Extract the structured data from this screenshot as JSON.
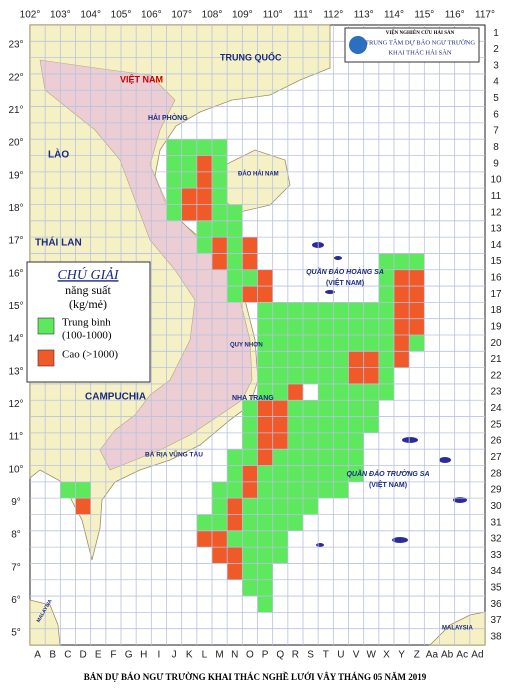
{
  "header": {
    "institute": "VIỆN NGHIÊN CỨU HẢI SẢN",
    "center": [
      "TRUNG TÂM DỰ BÁO NGƯ TRƯỜNG",
      "KHAI THÁC HẢI SẢN"
    ]
  },
  "longitudes": [
    "102°",
    "103°",
    "104°",
    "105°",
    "106°",
    "107°",
    "108°",
    "109°",
    "110°",
    "111°",
    "112°",
    "113°",
    "114°",
    "115°",
    "116°",
    "117°"
  ],
  "latitudes": [
    "23°",
    "22°",
    "21°",
    "20°",
    "19°",
    "18°",
    "17°",
    "16°",
    "15°",
    "14°",
    "13°",
    "12°",
    "11°",
    "10°",
    "9°",
    "8°",
    "7°",
    "6°",
    "5°"
  ],
  "columns": [
    "A",
    "B",
    "C",
    "D",
    "E",
    "F",
    "G",
    "H",
    "I",
    "J",
    "K",
    "L",
    "M",
    "N",
    "O",
    "P",
    "Q",
    "R",
    "S",
    "T",
    "U",
    "V",
    "W",
    "X",
    "Y",
    "Z",
    "Aa",
    "Ab",
    "Ac",
    "Ad"
  ],
  "rows": [
    "1",
    "2",
    "3",
    "4",
    "5",
    "6",
    "7",
    "8",
    "9",
    "10",
    "11",
    "12",
    "13",
    "14",
    "15",
    "16",
    "17",
    "18",
    "19",
    "20",
    "21",
    "22",
    "23",
    "24",
    "25",
    "26",
    "27",
    "28",
    "29",
    "30",
    "31",
    "32",
    "33",
    "34",
    "35",
    "36",
    "37",
    "38"
  ],
  "places": {
    "vietnam": "VIỆT NAM",
    "china": "TRUNG QUỐC",
    "laos": "LÀO",
    "thailand": "THÁI LAN",
    "cambodia": "CAMPUCHIA",
    "haiphong": "HẢI PHÒNG",
    "hainan": "ĐẢO HẢI NAM",
    "hoangsa": "QUẦN ĐẢO HOÀNG SA",
    "hoangsa_vn": "(VIỆT NAM)",
    "truongsa": "QUẦN ĐẢO TRƯỜNG SA",
    "truongsa_vn": "(VIỆT NAM)",
    "nhatrang": "NHA TRANG",
    "vungtau": "BÀ RỊA VŨNG TÀU",
    "quynhon": "QUY NHƠN",
    "malaysia_w": "MALAYSIA",
    "malaysia_e": "MALAYSIA"
  },
  "legend": {
    "title": "CHÚ GIẢI",
    "subtitle": [
      "năng suất",
      "(kg/mẻ)"
    ],
    "items": [
      {
        "label": [
          "Trung bình",
          "(100-1000)"
        ],
        "color": "#5de85d"
      },
      {
        "label": [
          "Cao (>1000)"
        ],
        "color": "#f05a28"
      }
    ]
  },
  "grid_cells": [
    {
      "row": 8,
      "medium": [
        "J",
        "K",
        "L",
        "M"
      ],
      "high": []
    },
    {
      "row": 9,
      "medium": [
        "J",
        "K",
        "M"
      ],
      "high": [
        "L"
      ]
    },
    {
      "row": 10,
      "medium": [
        "J",
        "K",
        "M"
      ],
      "high": [
        "L"
      ]
    },
    {
      "row": 11,
      "medium": [
        "J",
        "M"
      ],
      "high": [
        "K",
        "L"
      ]
    },
    {
      "row": 12,
      "medium": [
        "J",
        "M",
        "N"
      ],
      "high": [
        "K",
        "L"
      ]
    },
    {
      "row": 13,
      "medium": [
        "L",
        "M",
        "N"
      ],
      "high": []
    },
    {
      "row": 14,
      "medium": [
        "L",
        "N"
      ],
      "high": [
        "M",
        "O"
      ]
    },
    {
      "row": 15,
      "medium": [
        "N",
        "X",
        "Y",
        "Z"
      ],
      "high": [
        "M",
        "O"
      ]
    },
    {
      "row": 16,
      "medium": [
        "N",
        "O",
        "X"
      ],
      "high": [
        "P",
        "Y",
        "Z"
      ]
    },
    {
      "row": 17,
      "medium": [
        "N",
        "X"
      ],
      "high": [
        "O",
        "P",
        "Y",
        "Z"
      ]
    },
    {
      "row": 18,
      "medium": [
        "P",
        "Q",
        "R",
        "S",
        "T",
        "U",
        "V",
        "W",
        "X"
      ],
      "high": [
        "Y",
        "Z"
      ]
    },
    {
      "row": 19,
      "medium": [
        "P",
        "Q",
        "R",
        "S",
        "T",
        "U",
        "V",
        "W",
        "X"
      ],
      "high": [
        "Y",
        "Z"
      ]
    },
    {
      "row": 20,
      "medium": [
        "P",
        "Q",
        "R",
        "S",
        "T",
        "U",
        "V",
        "W",
        "X",
        "Z"
      ],
      "high": [
        "Y"
      ]
    },
    {
      "row": 21,
      "medium": [
        "P",
        "Q",
        "R",
        "S",
        "T",
        "U",
        "X"
      ],
      "high": [
        "V",
        "W",
        "Y"
      ]
    },
    {
      "row": 22,
      "medium": [
        "P",
        "Q",
        "R",
        "S",
        "T",
        "U",
        "X"
      ],
      "high": [
        "V",
        "W"
      ]
    },
    {
      "row": 23,
      "medium": [
        "P",
        "Q",
        "T",
        "U",
        "V",
        "W",
        "X"
      ],
      "high": [
        "R"
      ]
    },
    {
      "row": 24,
      "medium": [
        "O",
        "R",
        "S",
        "T",
        "U",
        "V",
        "W"
      ],
      "high": [
        "P",
        "Q"
      ]
    },
    {
      "row": 25,
      "medium": [
        "O",
        "R",
        "S",
        "T",
        "U",
        "V",
        "W"
      ],
      "high": [
        "P",
        "Q"
      ]
    },
    {
      "row": 26,
      "medium": [
        "O",
        "R",
        "S",
        "T",
        "U",
        "V"
      ],
      "high": [
        "P",
        "Q"
      ]
    },
    {
      "row": 27,
      "medium": [
        "N",
        "O",
        "Q",
        "R",
        "S",
        "T",
        "U",
        "V"
      ],
      "high": [
        "P"
      ]
    },
    {
      "row": 28,
      "medium": [
        "N",
        "P",
        "Q",
        "R",
        "S",
        "T",
        "U",
        "V"
      ],
      "high": [
        "O"
      ]
    },
    {
      "row": 29,
      "medium": [
        "C",
        "D",
        "M",
        "N",
        "P",
        "Q",
        "R",
        "S",
        "T",
        "U"
      ],
      "high": [
        "O"
      ]
    },
    {
      "row": 30,
      "medium": [
        "M",
        "O",
        "P",
        "Q",
        "R",
        "S"
      ],
      "high": [
        "D",
        "N"
      ]
    },
    {
      "row": 31,
      "medium": [
        "L",
        "M",
        "O",
        "P",
        "Q",
        "R"
      ],
      "high": [
        "N"
      ]
    },
    {
      "row": 32,
      "medium": [
        "N",
        "O",
        "P",
        "Q"
      ],
      "high": [
        "L",
        "M"
      ]
    },
    {
      "row": 33,
      "medium": [
        "O",
        "P",
        "Q"
      ],
      "high": [
        "M",
        "N"
      ]
    },
    {
      "row": 34,
      "medium": [
        "O",
        "P"
      ],
      "high": [
        "N"
      ]
    },
    {
      "row": 35,
      "medium": [
        "O",
        "P"
      ],
      "high": []
    },
    {
      "row": 36,
      "medium": [
        "P"
      ],
      "high": []
    }
  ],
  "footer": "BẢN DỰ BÁO NGƯ TRƯỜNG KHAI THÁC NGHỀ LƯỚI VÂY THÁNG 05 NĂM 2019"
}
